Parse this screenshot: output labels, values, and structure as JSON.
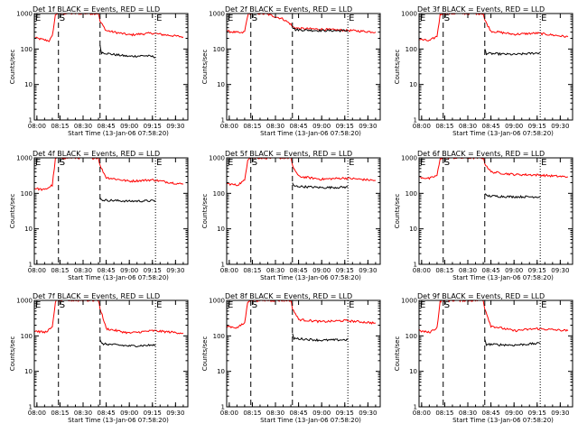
{
  "figure": {
    "title_suffix": "BLACK = Events, RED = LLD",
    "marker_s": "S",
    "marker_e": "E"
  },
  "colors": {
    "events": "#000000",
    "lld": "#ff0000",
    "axis": "#000000",
    "background": "#ffffff"
  },
  "chart_data": [
    {
      "type": "line",
      "title": "Det 1f BLACK = Events, RED = LLD",
      "xlabel": "Start Time (13-Jan-06 07:58:20)",
      "ylabel": "Counts/sec",
      "x_ticks": [
        "08:00",
        "08:15",
        "08:30",
        "08:45",
        "09:00",
        "09:15",
        "09:30"
      ],
      "y_ticks": [
        "1",
        "10",
        "100",
        "1000"
      ],
      "y_scale": "log",
      "ylim": [
        1,
        1000
      ],
      "series": [
        {
          "color": "red",
          "x": [
            "07:58",
            "08:05",
            "08:08",
            "08:10",
            "08:12",
            "08:13",
            "08:40",
            "08:41",
            "08:45",
            "09:00",
            "09:15",
            "09:20",
            "09:35"
          ],
          "y": [
            210,
            180,
            170,
            230,
            900,
            1000,
            1000,
            600,
            330,
            250,
            280,
            260,
            220
          ]
        },
        {
          "color": "black",
          "x": [
            "08:41",
            "08:42",
            "08:50",
            "09:00",
            "09:10",
            "09:17"
          ],
          "y": [
            120,
            80,
            70,
            62,
            65,
            60
          ]
        }
      ],
      "markers": [
        {
          "label": "S",
          "x": "08:14",
          "style": "dashed"
        },
        {
          "label": "",
          "x": "08:41",
          "style": "dashed"
        },
        {
          "label": "E",
          "x": "09:17",
          "style": "dotted"
        }
      ]
    },
    {
      "type": "line",
      "title": "Det 2f BLACK = Events, RED = LLD",
      "xlabel": "Start Time (13-Jan-06 07:58:20)",
      "ylabel": "Counts/sec",
      "x_ticks": [
        "08:00",
        "08:15",
        "08:30",
        "08:45",
        "09:00",
        "09:15",
        "09:30"
      ],
      "y_ticks": [
        "1",
        "10",
        "100",
        "1000"
      ],
      "y_scale": "log",
      "ylim": [
        1,
        1000
      ],
      "series": [
        {
          "color": "red",
          "x": [
            "07:58",
            "08:08",
            "08:10",
            "08:12",
            "08:13",
            "08:20",
            "08:25",
            "08:35",
            "08:40",
            "08:41",
            "08:45",
            "09:00",
            "09:20",
            "09:35"
          ],
          "y": [
            320,
            280,
            310,
            900,
            1000,
            1000,
            950,
            700,
            500,
            420,
            380,
            360,
            330,
            300
          ]
        },
        {
          "color": "black",
          "x": [
            "08:41",
            "08:43",
            "09:00",
            "09:17"
          ],
          "y": [
            410,
            350,
            330,
            330
          ]
        }
      ],
      "markers": [
        {
          "label": "S",
          "x": "08:14",
          "style": "dashed"
        },
        {
          "label": "",
          "x": "08:41",
          "style": "dashed"
        },
        {
          "label": "E",
          "x": "09:17",
          "style": "dotted"
        }
      ]
    },
    {
      "type": "line",
      "title": "Det 3f BLACK = Events, RED = LLD",
      "xlabel": "Start Time (13-Jan-06 07:58:20)",
      "ylabel": "Counts/sec",
      "x_ticks": [
        "08:00",
        "08:15",
        "08:30",
        "08:45",
        "09:00",
        "09:15",
        "09:30"
      ],
      "y_ticks": [
        "1",
        "10",
        "100",
        "1000"
      ],
      "y_scale": "log",
      "ylim": [
        1,
        1000
      ],
      "series": [
        {
          "color": "red",
          "x": [
            "07:58",
            "08:05",
            "08:10",
            "08:12",
            "08:13",
            "08:40",
            "08:41",
            "08:45",
            "09:00",
            "09:15",
            "09:35"
          ],
          "y": [
            190,
            170,
            230,
            900,
            1000,
            1000,
            650,
            320,
            260,
            280,
            220
          ]
        },
        {
          "color": "black",
          "x": [
            "08:41",
            "08:42",
            "09:00",
            "09:17"
          ],
          "y": [
            100,
            75,
            70,
            78
          ]
        }
      ],
      "markers": [
        {
          "label": "S",
          "x": "08:14",
          "style": "dashed"
        },
        {
          "label": "",
          "x": "08:41",
          "style": "dashed"
        },
        {
          "label": "E",
          "x": "09:17",
          "style": "dotted"
        }
      ]
    },
    {
      "type": "line",
      "title": "Det 4f BLACK = Events, RED = LLD",
      "xlabel": "Start Time (13-Jan-06 07:58:20)",
      "ylabel": "Counts/sec",
      "x_ticks": [
        "08:00",
        "08:15",
        "08:30",
        "08:45",
        "09:00",
        "09:15",
        "09:30"
      ],
      "y_ticks": [
        "1",
        "10",
        "100",
        "1000"
      ],
      "y_scale": "log",
      "ylim": [
        1,
        1000
      ],
      "series": [
        {
          "color": "red",
          "x": [
            "07:58",
            "08:05",
            "08:10",
            "08:12",
            "08:13",
            "08:40",
            "08:41",
            "08:45",
            "09:00",
            "09:15",
            "09:35"
          ],
          "y": [
            140,
            125,
            170,
            900,
            1000,
            1000,
            600,
            280,
            220,
            240,
            180
          ]
        },
        {
          "color": "black",
          "x": [
            "08:41",
            "08:42",
            "09:00",
            "09:17"
          ],
          "y": [
            80,
            65,
            60,
            62
          ]
        }
      ],
      "markers": [
        {
          "label": "S",
          "x": "08:14",
          "style": "dashed"
        },
        {
          "label": "",
          "x": "08:41",
          "style": "dashed"
        },
        {
          "label": "E",
          "x": "09:17",
          "style": "dotted"
        }
      ]
    },
    {
      "type": "line",
      "title": "Det 5f BLACK = Events, RED = LLD",
      "xlabel": "Start Time (13-Jan-06 07:58:20)",
      "ylabel": "Counts/sec",
      "x_ticks": [
        "08:00",
        "08:15",
        "08:30",
        "08:45",
        "09:00",
        "09:15",
        "09:30"
      ],
      "y_ticks": [
        "1",
        "10",
        "100",
        "1000"
      ],
      "y_scale": "log",
      "ylim": [
        1,
        1000
      ],
      "series": [
        {
          "color": "red",
          "x": [
            "07:58",
            "08:05",
            "08:10",
            "08:12",
            "08:13",
            "08:40",
            "08:41",
            "08:45",
            "09:00",
            "09:15",
            "09:35"
          ],
          "y": [
            190,
            170,
            230,
            900,
            1000,
            1000,
            600,
            300,
            250,
            270,
            230
          ]
        },
        {
          "color": "black",
          "x": [
            "08:41",
            "08:42",
            "09:00",
            "09:17"
          ],
          "y": [
            190,
            160,
            145,
            150
          ]
        }
      ],
      "markers": [
        {
          "label": "S",
          "x": "08:14",
          "style": "dashed"
        },
        {
          "label": "",
          "x": "08:41",
          "style": "dashed"
        },
        {
          "label": "E",
          "x": "09:17",
          "style": "dotted"
        }
      ]
    },
    {
      "type": "line",
      "title": "Det 6f BLACK = Events, RED = LLD",
      "xlabel": "Start Time (13-Jan-06 07:58:20)",
      "ylabel": "Counts/sec",
      "x_ticks": [
        "08:00",
        "08:15",
        "08:30",
        "08:45",
        "09:00",
        "09:15",
        "09:30"
      ],
      "y_ticks": [
        "1",
        "10",
        "100",
        "1000"
      ],
      "y_scale": "log",
      "ylim": [
        1,
        1000
      ],
      "series": [
        {
          "color": "red",
          "x": [
            "07:58",
            "08:05",
            "08:10",
            "08:12",
            "08:13",
            "08:40",
            "08:41",
            "08:45",
            "09:00",
            "09:15",
            "09:35"
          ],
          "y": [
            290,
            260,
            320,
            900,
            1000,
            1000,
            700,
            400,
            340,
            330,
            290
          ]
        },
        {
          "color": "black",
          "x": [
            "08:41",
            "08:42",
            "09:00",
            "09:17"
          ],
          "y": [
            100,
            85,
            80,
            80
          ]
        }
      ],
      "markers": [
        {
          "label": "S",
          "x": "08:14",
          "style": "dashed"
        },
        {
          "label": "",
          "x": "08:41",
          "style": "dashed"
        },
        {
          "label": "E",
          "x": "09:17",
          "style": "dotted"
        }
      ]
    },
    {
      "type": "line",
      "title": "Det 7f BLACK = Events, RED = LLD",
      "xlabel": "Start Time (13-Jan-06 07:58:20)",
      "ylabel": "Counts/sec",
      "x_ticks": [
        "08:00",
        "08:15",
        "08:30",
        "08:45",
        "09:00",
        "09:15",
        "09:30"
      ],
      "y_ticks": [
        "1",
        "10",
        "100",
        "1000"
      ],
      "y_scale": "log",
      "ylim": [
        1,
        1000
      ],
      "series": [
        {
          "color": "red",
          "x": [
            "07:58",
            "08:05",
            "08:10",
            "08:12",
            "08:13",
            "08:40",
            "08:41",
            "08:45",
            "09:00",
            "09:15",
            "09:35"
          ],
          "y": [
            140,
            125,
            170,
            900,
            1000,
            1000,
            600,
            160,
            120,
            140,
            120
          ]
        },
        {
          "color": "black",
          "x": [
            "08:41",
            "08:42",
            "09:00",
            "09:17"
          ],
          "y": [
            75,
            60,
            52,
            55
          ]
        }
      ],
      "markers": [
        {
          "label": "S",
          "x": "08:14",
          "style": "dashed"
        },
        {
          "label": "",
          "x": "08:41",
          "style": "dashed"
        },
        {
          "label": "E",
          "x": "09:17",
          "style": "dotted"
        }
      ]
    },
    {
      "type": "line",
      "title": "Det 8f BLACK = Events, RED = LLD",
      "xlabel": "Start Time (13-Jan-06 07:58:20)",
      "ylabel": "Counts/sec",
      "x_ticks": [
        "08:00",
        "08:15",
        "08:30",
        "08:45",
        "09:00",
        "09:15",
        "09:30"
      ],
      "y_ticks": [
        "1",
        "10",
        "100",
        "1000"
      ],
      "y_scale": "log",
      "ylim": [
        1,
        1000
      ],
      "series": [
        {
          "color": "red",
          "x": [
            "07:58",
            "08:05",
            "08:10",
            "08:12",
            "08:13",
            "08:40",
            "08:41",
            "08:45",
            "09:00",
            "09:15",
            "09:35"
          ],
          "y": [
            190,
            170,
            230,
            900,
            1000,
            1000,
            600,
            290,
            250,
            270,
            230
          ]
        },
        {
          "color": "black",
          "x": [
            "08:41",
            "08:42",
            "09:00",
            "09:17"
          ],
          "y": [
            110,
            85,
            75,
            78
          ]
        }
      ],
      "markers": [
        {
          "label": "S",
          "x": "08:14",
          "style": "dashed"
        },
        {
          "label": "",
          "x": "08:41",
          "style": "dashed"
        },
        {
          "label": "E",
          "x": "09:17",
          "style": "dotted"
        }
      ]
    },
    {
      "type": "line",
      "title": "Det 9f BLACK = Events, RED = LLD",
      "xlabel": "Start Time (13-Jan-06 07:58:20)",
      "ylabel": "Counts/sec",
      "x_ticks": [
        "08:00",
        "08:15",
        "08:30",
        "08:45",
        "09:00",
        "09:15",
        "09:30"
      ],
      "y_ticks": [
        "1",
        "10",
        "100",
        "1000"
      ],
      "y_scale": "log",
      "ylim": [
        1,
        1000
      ],
      "series": [
        {
          "color": "red",
          "x": [
            "07:58",
            "08:05",
            "08:10",
            "08:12",
            "08:13",
            "08:40",
            "08:41",
            "08:45",
            "09:00",
            "09:15",
            "09:35"
          ],
          "y": [
            140,
            125,
            170,
            900,
            1000,
            1000,
            600,
            190,
            140,
            160,
            140
          ]
        },
        {
          "color": "black",
          "x": [
            "08:41",
            "08:42",
            "09:00",
            "09:17"
          ],
          "y": [
            75,
            58,
            55,
            62
          ]
        }
      ],
      "markers": [
        {
          "label": "S",
          "x": "08:14",
          "style": "dashed"
        },
        {
          "label": "",
          "x": "08:41",
          "style": "dashed"
        },
        {
          "label": "E",
          "x": "09:17",
          "style": "dotted"
        }
      ]
    }
  ]
}
